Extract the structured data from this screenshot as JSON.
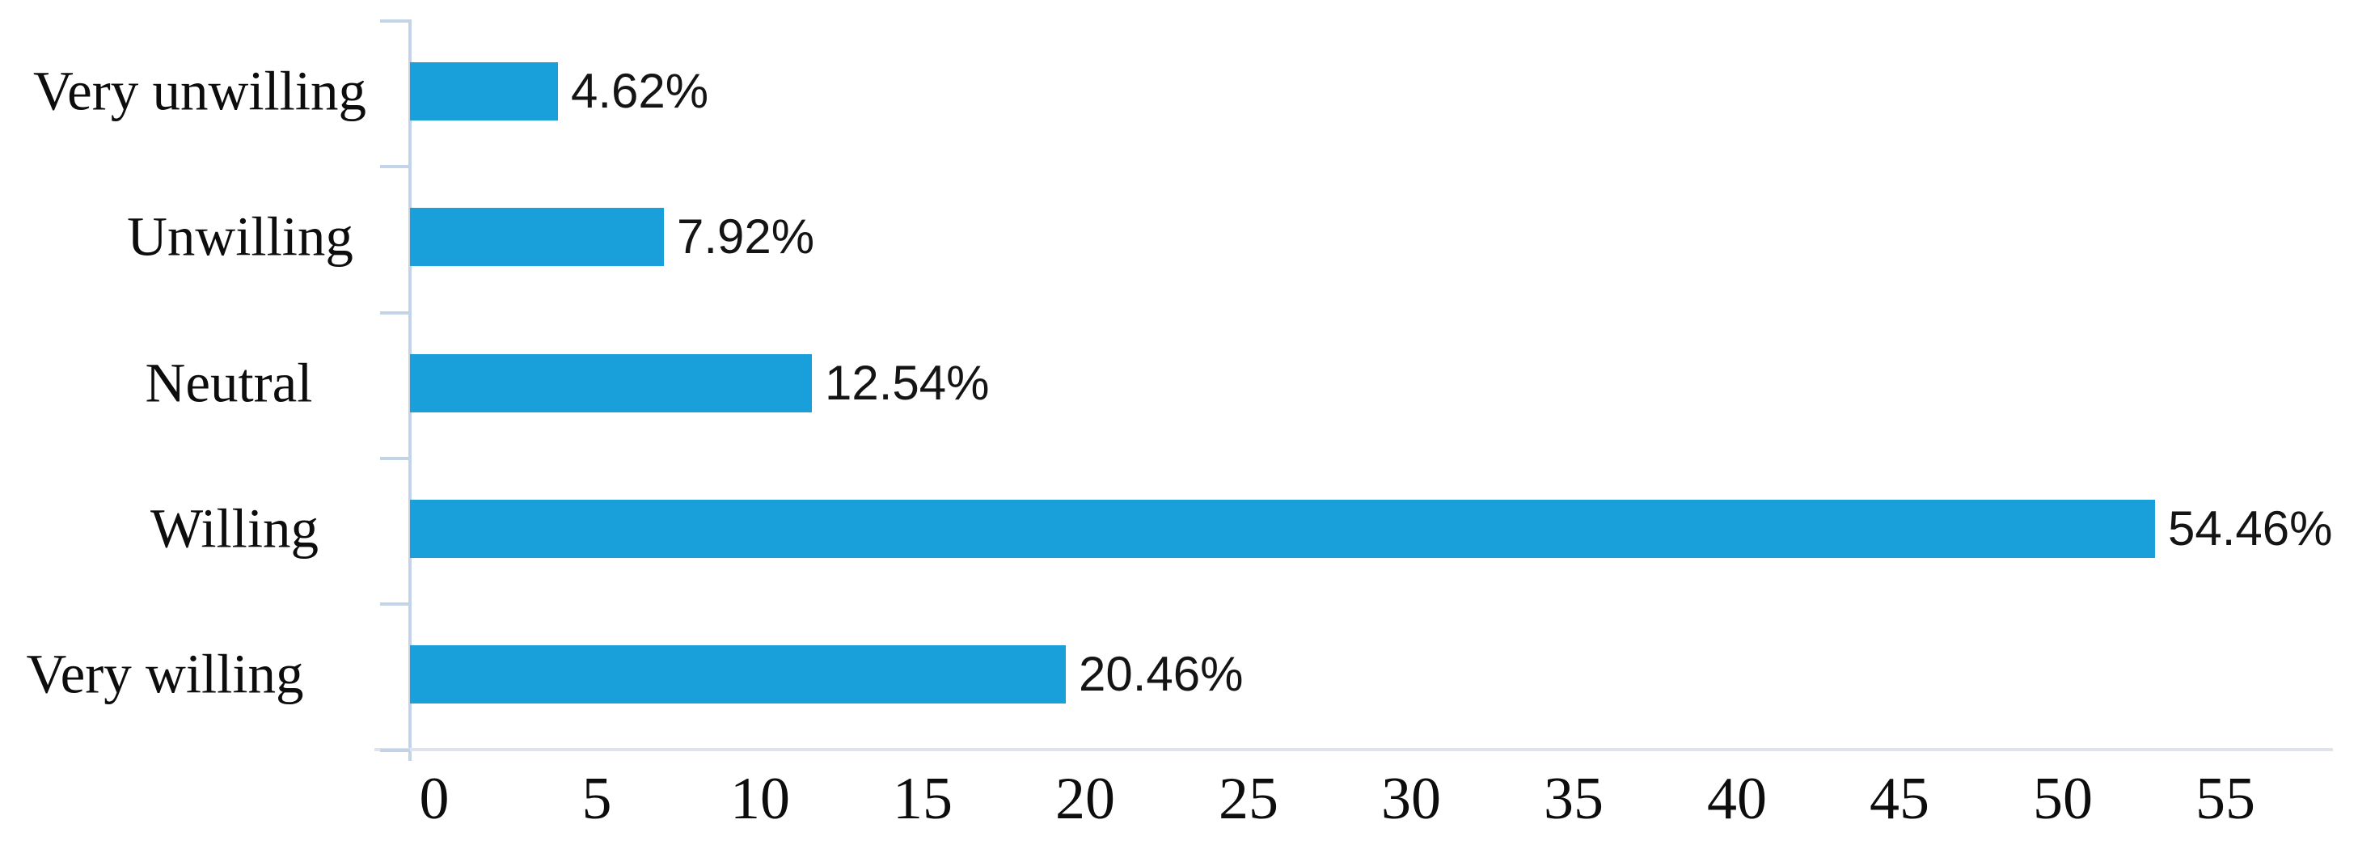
{
  "chart_data": {
    "type": "bar",
    "orientation": "horizontal",
    "title": "",
    "xlabel": "",
    "ylabel": "",
    "categories": [
      "Very unwilling",
      "Unwilling",
      "Neutral",
      "Willing",
      "Very willing"
    ],
    "values": [
      4.62,
      7.92,
      12.54,
      54.46,
      20.46
    ],
    "value_labels": [
      "4.62%",
      "7.92%",
      "12.54%",
      "54.46%",
      "20.46%"
    ],
    "x_ticks": [
      "0",
      "5",
      "10",
      "15",
      "20",
      "25",
      "30",
      "35",
      "40",
      "45",
      "50",
      "55"
    ],
    "xlim": [
      0,
      60
    ],
    "grid": false,
    "legend": false,
    "bar_color": "#19a0da",
    "y_axis_color": "#c3d4e8",
    "x_axis_color": "#dfe3eb",
    "text_color": "#0d0d0d"
  }
}
